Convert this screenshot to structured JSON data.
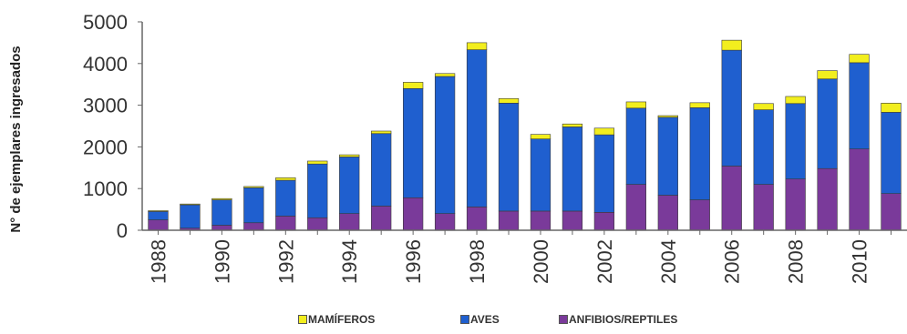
{
  "chart_data": {
    "type": "bar",
    "stacked": true,
    "ylabel": "N° de ejemplares ingresados",
    "ylim": [
      0,
      5000
    ],
    "yticks": [
      "0",
      "1000",
      "2000",
      "3000",
      "4000",
      "5000"
    ],
    "categories": [
      "1988",
      "1989",
      "1990",
      "1991",
      "1992",
      "1993",
      "1994",
      "1995",
      "1996",
      "1997",
      "1998",
      "1999",
      "2000",
      "2001",
      "2002",
      "2003",
      "2004",
      "2005",
      "2006",
      "2007",
      "2008",
      "2009",
      "2010",
      "2011"
    ],
    "xtick_labels": [
      "1988",
      "",
      "1990",
      "",
      "1992",
      "",
      "1994",
      "",
      "1996",
      "",
      "1998",
      "",
      "2000",
      "",
      "2002",
      "",
      "2004",
      "",
      "2006",
      "",
      "2008",
      "",
      "2010",
      ""
    ],
    "series": [
      {
        "name": "ANFIBIOS/REPTILES",
        "color": "#7a3a9a",
        "values": [
          250,
          50,
          120,
          180,
          340,
          300,
          400,
          580,
          780,
          400,
          560,
          460,
          460,
          460,
          430,
          1100,
          840,
          730,
          1540,
          1100,
          1230,
          1480,
          1950,
          880
        ]
      },
      {
        "name": "AVES",
        "color": "#1f5fcf",
        "values": [
          200,
          560,
          610,
          840,
          860,
          1290,
          1360,
          1740,
          2620,
          3290,
          3770,
          2590,
          1730,
          2020,
          1860,
          1830,
          1870,
          2210,
          2780,
          1790,
          1810,
          2150,
          2070,
          1950
        ]
      },
      {
        "name": "MAMÍFEROS",
        "color": "#f2ee1e",
        "values": [
          20,
          20,
          30,
          30,
          60,
          70,
          50,
          60,
          150,
          70,
          170,
          110,
          110,
          70,
          160,
          150,
          40,
          120,
          240,
          150,
          170,
          200,
          200,
          220
        ]
      }
    ],
    "legend": {
      "position": "bottom",
      "order": [
        "MAMÍFEROS",
        "AVES",
        "ANFIBIOS/REPTILES"
      ]
    },
    "grid": false
  }
}
